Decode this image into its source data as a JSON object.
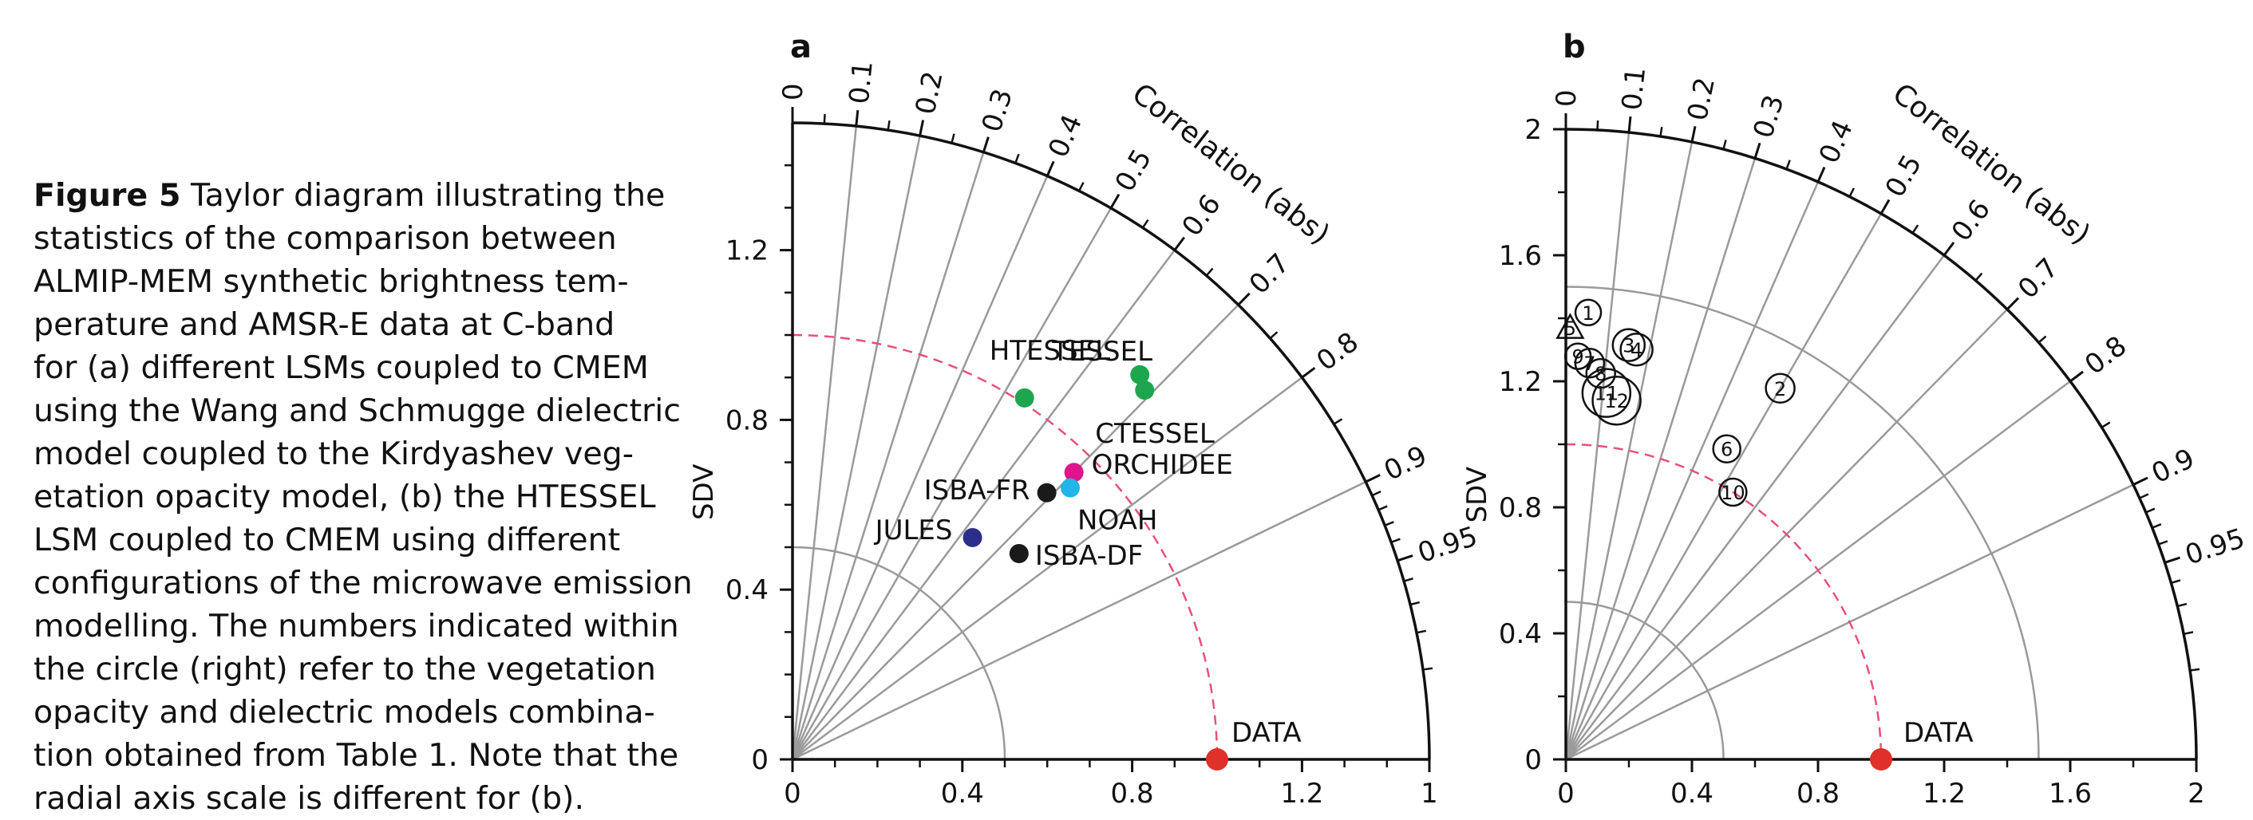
{
  "caption": {
    "label": "Figure 5",
    "lines": [
      " Taylor diagram illustrating the",
      "statistics of the comparison between",
      "ALMIP-MEM synthetic brightness tem-",
      "perature and AMSR-E data at C-band",
      "for (a) different LSMs coupled to CMEM",
      "using the Wang and Schmugge dielectric",
      "model coupled to the Kirdyashev veg-",
      "etation opacity model, (b) the HTESSEL",
      "LSM coupled to CMEM using different",
      "configurations of the microwave emission",
      "modelling. The numbers indicated within",
      "the circle (right) refer to the vegetation",
      "opacity and dielectric models combina-",
      "tion obtained from Table 1. Note that the",
      "radial axis scale is different for (b)."
    ]
  },
  "chart_data": [
    {
      "type": "scatter",
      "panel_label": "a",
      "ylabel": "SDV",
      "correlation_label": "Correlation (abs)",
      "rmax": 1.5,
      "sd_ticks": [
        0,
        0.4,
        0.8,
        1.2
      ],
      "x_tick_labels": [
        "0",
        "0.4",
        "0.8",
        "1.2",
        "1"
      ],
      "arc_sd": [
        0.5,
        1.5
      ],
      "reference": {
        "label": "DATA",
        "sd": 1.0,
        "color": "#e0302a"
      },
      "corr_ticks": [
        "0",
        "0.1",
        "0.2",
        "0.3",
        "0.4",
        "0.5",
        "0.6",
        "0.7",
        "0.8",
        "0.9",
        "0.95"
      ],
      "points": [
        {
          "label": "TESSEL",
          "sd": 1.221,
          "corr": 0.67,
          "color": "#1ea64f"
        },
        {
          "label": "CTESSEL",
          "sd": 1.202,
          "corr": 0.69,
          "color": "#1ea64f"
        },
        {
          "label": "HTESSEL",
          "sd": 1.012,
          "corr": 0.54,
          "color": "#1ea64f"
        },
        {
          "label": "ORCHIDEE",
          "sd": 0.947,
          "corr": 0.7,
          "color": "#e0148c"
        },
        {
          "label": "NOAH",
          "sd": 0.915,
          "corr": 0.715,
          "color": "#23b4e8"
        },
        {
          "label": "ISBA-FR",
          "sd": 0.868,
          "corr": 0.69,
          "color": "#1a1a1a"
        },
        {
          "label": "ISBA-DF",
          "sd": 0.721,
          "corr": 0.74,
          "color": "#1a1a1a"
        },
        {
          "label": "JULES",
          "sd": 0.673,
          "corr": 0.63,
          "color": "#2b2f8a"
        }
      ]
    },
    {
      "type": "scatter",
      "panel_label": "b",
      "ylabel": "SDV",
      "correlation_label": "Correlation (abs)",
      "rmax": 2.0,
      "sd_ticks": [
        0,
        0.4,
        0.8,
        1.2,
        1.6,
        2
      ],
      "x_tick_labels": [
        "0",
        "0.4",
        "0.8",
        "1.2",
        "1.6",
        "2"
      ],
      "arc_sd": [
        0.5,
        1.5
      ],
      "reference": {
        "label": "DATA",
        "sd": 1.0,
        "color": "#e0302a"
      },
      "corr_ticks": [
        "0",
        "0.1",
        "0.2",
        "0.3",
        "0.4",
        "0.5",
        "0.6",
        "0.7",
        "0.8",
        "0.9",
        "0.95"
      ],
      "points": [
        {
          "label": "1",
          "sd": 1.42,
          "corr": 0.05,
          "marker": "circle"
        },
        {
          "label": "5",
          "sd": 1.37,
          "corr": 0.01,
          "marker": "triangle"
        },
        {
          "label": "3",
          "sd": 1.33,
          "corr": 0.15,
          "marker": "circle"
        },
        {
          "label": "4",
          "sd": 1.32,
          "corr": 0.17,
          "marker": "circle"
        },
        {
          "label": "9",
          "sd": 1.28,
          "corr": 0.03,
          "marker": "circle"
        },
        {
          "label": "7",
          "sd": 1.26,
          "corr": 0.06,
          "marker": "circle"
        },
        {
          "label": "8",
          "sd": 1.23,
          "corr": 0.09,
          "marker": "circle"
        },
        {
          "label": "2",
          "sd": 1.36,
          "corr": 0.5,
          "marker": "circle"
        },
        {
          "label": "11",
          "sd": 1.17,
          "corr": 0.11,
          "marker": "circle"
        },
        {
          "label": "12",
          "sd": 1.15,
          "corr": 0.14,
          "marker": "circle"
        },
        {
          "label": "6",
          "sd": 1.11,
          "corr": 0.46,
          "marker": "circle"
        },
        {
          "label": "10",
          "sd": 1.0,
          "corr": 0.53,
          "marker": "circle"
        }
      ]
    }
  ]
}
